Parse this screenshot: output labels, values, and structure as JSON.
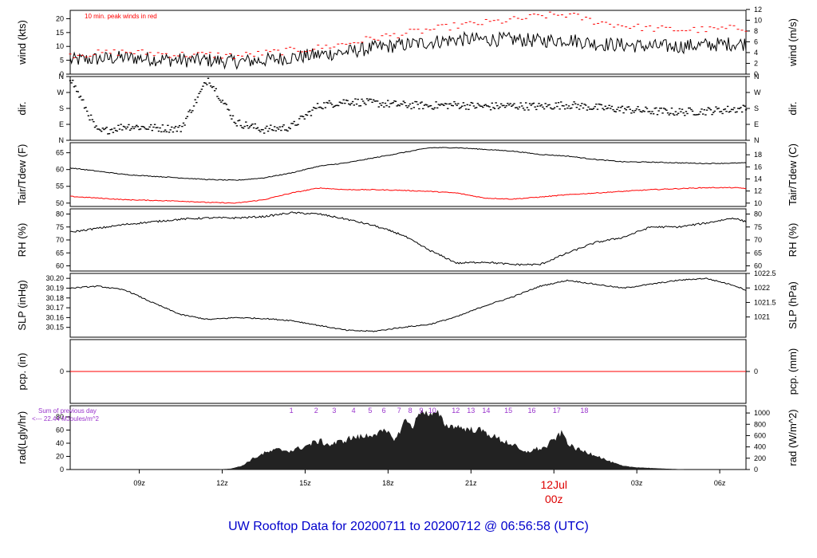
{
  "title": "UW Rooftop Data for 20200711  to  20200712 @ 06:56:58  (UTC)",
  "colors": {
    "primary": "#000000",
    "accent": "#ff0000",
    "title": "#0000cc",
    "rad_text": "#9933cc"
  },
  "chart_data": {
    "type": "line",
    "x_range_hours": [
      6.5,
      30.95
    ],
    "x_ticks": [
      {
        "hour": 9,
        "label": "09z"
      },
      {
        "hour": 12,
        "label": "12z"
      },
      {
        "hour": 15,
        "label": "15z"
      },
      {
        "hour": 18,
        "label": "18z"
      },
      {
        "hour": 21,
        "label": "21z"
      },
      {
        "hour": 24,
        "label": "12Jul",
        "label2": "00z"
      },
      {
        "hour": 27,
        "label": "03z"
      },
      {
        "hour": 30,
        "label": "06z"
      }
    ],
    "panels": [
      {
        "id": "wind",
        "ylabel": "wind (kts)",
        "ylabel_right": "wind (m/s)",
        "annotation": "10 min. peak winds in red",
        "ylim": [
          0,
          23
        ],
        "left_ticks": [
          {
            "v": 0,
            "l": "0"
          },
          {
            "v": 5,
            "l": "5"
          },
          {
            "v": 10,
            "l": "10"
          },
          {
            "v": 15,
            "l": "15"
          },
          {
            "v": 20,
            "l": "20"
          }
        ],
        "right_ticks": [
          {
            "v": 0,
            "l": "0"
          },
          {
            "v": 3.89,
            "l": "2"
          },
          {
            "v": 7.78,
            "l": "4"
          },
          {
            "v": 11.66,
            "l": "6"
          },
          {
            "v": 15.55,
            "l": "8"
          },
          {
            "v": 19.44,
            "l": "10"
          },
          {
            "v": 23.33,
            "l": "12"
          }
        ],
        "series": [
          {
            "kind": "line",
            "color": "#000000",
            "x": [
              6.5,
              7.5,
              8.5,
              9.5,
              10.5,
              11.5,
              12.5,
              13.5,
              14.5,
              15.5,
              16.5,
              17.5,
              18.5,
              19.5,
              20.5,
              21.5,
              22.5,
              23.5,
              24.5,
              25.5,
              26.5,
              27.5,
              28.5,
              29.5,
              30.5,
              30.95
            ],
            "y": [
              5,
              5.5,
              6,
              5.5,
              5,
              5,
              4.5,
              5,
              6,
              7,
              8,
              9.5,
              10.5,
              11.5,
              12.5,
              12.5,
              12.5,
              12,
              12.5,
              11,
              10.5,
              10,
              10,
              10.5,
              11,
              11
            ]
          },
          {
            "kind": "dash",
            "color": "#ff0000",
            "x": [
              6.5,
              7.5,
              8.5,
              9.5,
              10.5,
              11.5,
              12.5,
              13.5,
              14.5,
              15.5,
              16.5,
              17.5,
              18.5,
              19.5,
              20.5,
              21.5,
              22.5,
              23.5,
              24.5,
              25.5,
              26.5,
              27.5,
              28.5,
              29.5,
              30.5,
              30.95
            ],
            "y": [
              7,
              7.5,
              8,
              7.5,
              7,
              7,
              6.5,
              7.5,
              8.5,
              9.5,
              11,
              13,
              14.5,
              16,
              17.5,
              18.5,
              19.5,
              21,
              21.5,
              19,
              17.5,
              16.5,
              16,
              16,
              16.5,
              16.5
            ]
          }
        ]
      },
      {
        "id": "dir",
        "ylabel": "dir.",
        "ylabel_right": "dir.",
        "ylim": [
          0,
          360
        ],
        "left_ticks": [
          {
            "v": 0,
            "l": "N"
          },
          {
            "v": 90,
            "l": "E"
          },
          {
            "v": 180,
            "l": "S"
          },
          {
            "v": 270,
            "l": "W"
          },
          {
            "v": 360,
            "l": "N"
          }
        ],
        "right_ticks": [
          {
            "v": 0,
            "l": "N"
          },
          {
            "v": 90,
            "l": "E"
          },
          {
            "v": 180,
            "l": "S"
          },
          {
            "v": 270,
            "l": "W"
          },
          {
            "v": 360,
            "l": "N"
          }
        ],
        "series": [
          {
            "kind": "dir",
            "color": "#000000",
            "x": [
              6.5,
              7.5,
              8.5,
              9.5,
              10.5,
              11.5,
              12.5,
              13.5,
              14.5,
              15.5,
              16.5,
              17.5,
              18.5,
              19.5,
              20.5,
              21.5,
              22.5,
              23.5,
              24.5,
              25.5,
              26.5,
              27.5,
              28.5,
              29.5,
              30.5,
              30.95
            ],
            "y": [
              355,
              45,
              80,
              70,
              65,
              350,
              100,
              60,
              75,
              195,
              220,
              210,
              200,
              195,
              200,
              190,
              195,
              190,
              200,
              185,
              175,
              165,
              160,
              165,
              175,
              180
            ]
          }
        ]
      },
      {
        "id": "temp",
        "ylabel": "Tair/Tdew (F)",
        "ylabel_right": "Tair/Tdew (C)",
        "ylim": [
          49,
          68
        ],
        "left_ticks": [
          {
            "v": 50,
            "l": "50"
          },
          {
            "v": 55,
            "l": "55"
          },
          {
            "v": 60,
            "l": "60"
          },
          {
            "v": 65,
            "l": "65"
          }
        ],
        "right_ticks": [
          {
            "v": 50,
            "l": "10"
          },
          {
            "v": 53.6,
            "l": "12"
          },
          {
            "v": 57.2,
            "l": "14"
          },
          {
            "v": 60.8,
            "l": "16"
          },
          {
            "v": 64.4,
            "l": "18"
          }
        ],
        "series": [
          {
            "kind": "line",
            "color": "#000000",
            "name": "Tair",
            "x": [
              6.5,
              7.5,
              8.5,
              9.5,
              10.5,
              11.5,
              12.5,
              13.5,
              14.5,
              15.5,
              16.5,
              17.5,
              18.5,
              19.5,
              20.5,
              21.5,
              22.5,
              23.5,
              24.5,
              25.5,
              26.5,
              27.5,
              28.5,
              29.5,
              30.5,
              30.95
            ],
            "y": [
              60.5,
              59.5,
              58.5,
              58,
              57.5,
              57,
              56.8,
              57.5,
              59,
              61,
              62,
              63.5,
              65,
              66.5,
              66.5,
              66,
              65.5,
              64.5,
              64,
              63,
              62.3,
              62.2,
              62,
              61.8,
              61.9,
              62
            ]
          },
          {
            "kind": "line",
            "color": "#ff0000",
            "name": "Tdew",
            "x": [
              6.5,
              7.5,
              8.5,
              9.5,
              10.5,
              11.5,
              12.5,
              13.5,
              14.5,
              15.5,
              16.5,
              17.5,
              18.5,
              19.5,
              20.5,
              21.5,
              22.5,
              23.5,
              24.5,
              25.5,
              26.5,
              27.5,
              28.5,
              29.5,
              30.5,
              30.95
            ],
            "y": [
              52,
              51.5,
              51,
              50.8,
              50.6,
              50.2,
              50,
              51,
              53,
              54.5,
              54,
              54,
              53.8,
              53.5,
              53,
              51.5,
              51.2,
              51.8,
              52.5,
              53,
              53.5,
              54,
              54.3,
              54.6,
              54.6,
              54.4
            ]
          }
        ]
      },
      {
        "id": "rh",
        "ylabel": "RH (%)",
        "ylabel_right": "RH (%)",
        "ylim": [
          58,
          82
        ],
        "left_ticks": [
          {
            "v": 60,
            "l": "60"
          },
          {
            "v": 65,
            "l": "65"
          },
          {
            "v": 70,
            "l": "70"
          },
          {
            "v": 75,
            "l": "75"
          },
          {
            "v": 80,
            "l": "80"
          }
        ],
        "right_ticks": [
          {
            "v": 60,
            "l": "60"
          },
          {
            "v": 65,
            "l": "65"
          },
          {
            "v": 70,
            "l": "70"
          },
          {
            "v": 75,
            "l": "75"
          },
          {
            "v": 80,
            "l": "80"
          }
        ],
        "series": [
          {
            "kind": "line",
            "color": "#000000",
            "x": [
              6.5,
              7.5,
              8.5,
              9.5,
              10.5,
              11.5,
              12.5,
              13.5,
              14.5,
              15.5,
              16.5,
              17.5,
              18.5,
              19.5,
              20.5,
              21.5,
              22.5,
              23.5,
              24.5,
              25.5,
              26.5,
              27.5,
              28.5,
              29.5,
              30.5,
              30.95
            ],
            "y": [
              73,
              74.5,
              76,
              77,
              78,
              78.5,
              78.5,
              79,
              80.5,
              80,
              78,
              75.5,
              72,
              66,
              61,
              61.5,
              60.5,
              60.5,
              65,
              69,
              71,
              75,
              75,
              76.5,
              78.5,
              77
            ]
          }
        ]
      },
      {
        "id": "slp",
        "ylabel": "SLP (inHg)",
        "ylabel_right": "SLP (hPa)",
        "ylim": [
          30.14,
          30.205
        ],
        "left_ticks": [
          {
            "v": 30.15,
            "l": "30.15"
          },
          {
            "v": 30.16,
            "l": "30.16"
          },
          {
            "v": 30.17,
            "l": "30.17"
          },
          {
            "v": 30.18,
            "l": "30.18"
          },
          {
            "v": 30.19,
            "l": "30.19"
          },
          {
            "v": 30.2,
            "l": "30.20"
          }
        ],
        "right_ticks": [
          {
            "v": 30.1606,
            "l": "1021"
          },
          {
            "v": 30.1754,
            "l": "1021.5"
          },
          {
            "v": 30.1902,
            "l": "1022"
          },
          {
            "v": 30.205,
            "l": "1022.5"
          }
        ],
        "series": [
          {
            "kind": "line",
            "color": "#000000",
            "x": [
              6.5,
              7.5,
              8.5,
              9.5,
              10.5,
              11.5,
              12.5,
              13.5,
              14.5,
              15.5,
              16.5,
              17.5,
              18.5,
              19.5,
              20.5,
              21.5,
              22.5,
              23.5,
              24.5,
              25.5,
              26.5,
              27.5,
              28.5,
              29.5,
              30.5,
              30.95
            ],
            "y": [
              30.19,
              30.192,
              30.188,
              30.175,
              30.163,
              30.158,
              30.16,
              30.159,
              30.157,
              30.152,
              30.147,
              30.146,
              30.15,
              30.153,
              30.161,
              30.172,
              30.181,
              30.192,
              30.198,
              30.194,
              30.19,
              30.194,
              30.198,
              30.2,
              30.193,
              30.188
            ]
          }
        ]
      },
      {
        "id": "pcp",
        "ylabel": "pcp. (in)",
        "ylabel_right": "pcp. (mm)",
        "ylim": [
          -1,
          1
        ],
        "left_ticks": [
          {
            "v": 0,
            "l": "0"
          }
        ],
        "right_ticks": [
          {
            "v": 0,
            "l": "0"
          }
        ],
        "series": [
          {
            "kind": "line",
            "color": "#ff0000",
            "x": [
              6.5,
              30.95
            ],
            "y": [
              0,
              0
            ]
          }
        ]
      },
      {
        "id": "rad",
        "ylabel": "rad(Lgly/hr)",
        "ylabel_right": "rad (W/m^2)",
        "ylim": [
          0,
          97
        ],
        "left_ticks": [
          {
            "v": 0,
            "l": "0"
          },
          {
            "v": 20,
            "l": "20"
          },
          {
            "v": 40,
            "l": "40"
          },
          {
            "v": 60,
            "l": "60"
          },
          {
            "v": 80,
            "l": "80"
          }
        ],
        "right_ticks": [
          {
            "v": 0,
            "l": "0"
          },
          {
            "v": 17.2,
            "l": "200"
          },
          {
            "v": 34.4,
            "l": "400"
          },
          {
            "v": 51.6,
            "l": "600"
          },
          {
            "v": 68.8,
            "l": "800"
          },
          {
            "v": 86,
            "l": "1000"
          }
        ],
        "sum_text": "Sum of previous day",
        "sum_value_text": "<--- 22.44 MJoules/m^2",
        "hour_labels": [
          {
            "hour": 14.5,
            "l": "1"
          },
          {
            "hour": 15.4,
            "l": "2"
          },
          {
            "hour": 16.05,
            "l": "3"
          },
          {
            "hour": 16.75,
            "l": "4"
          },
          {
            "hour": 17.35,
            "l": "5"
          },
          {
            "hour": 17.85,
            "l": "6"
          },
          {
            "hour": 18.4,
            "l": "7"
          },
          {
            "hour": 18.8,
            "l": "8"
          },
          {
            "hour": 19.2,
            "l": "9"
          },
          {
            "hour": 19.6,
            "l": "10"
          },
          {
            "hour": 20.45,
            "l": "12"
          },
          {
            "hour": 21.0,
            "l": "13"
          },
          {
            "hour": 21.55,
            "l": "14"
          },
          {
            "hour": 22.35,
            "l": "15"
          },
          {
            "hour": 23.2,
            "l": "16"
          },
          {
            "hour": 24.1,
            "l": "17"
          },
          {
            "hour": 25.1,
            "l": "18"
          }
        ],
        "series": [
          {
            "kind": "area",
            "color": "#222222",
            "x": [
              11.9,
              12.3,
              12.7,
              13.1,
              13.5,
              14.0,
              14.5,
              15.0,
              15.5,
              15.9,
              16.3,
              16.7,
              17.1,
              17.5,
              17.9,
              18.3,
              18.6,
              18.9,
              19.2,
              19.5,
              19.8,
              20.1,
              20.5,
              20.9,
              21.3,
              21.7,
              22.1,
              22.5,
              22.9,
              23.3,
              23.7,
              24.0,
              24.3,
              24.6,
              25.0,
              25.5,
              26.0,
              26.5,
              27.0,
              27.5,
              28.0,
              28.7
            ],
            "y": [
              0,
              1,
              5,
              16,
              24,
              30,
              28,
              35,
              43,
              37,
              42,
              48,
              49,
              54,
              57,
              45,
              75,
              65,
              90,
              82,
              85,
              66,
              65,
              60,
              60,
              52,
              44,
              38,
              25,
              30,
              33,
              45,
              55,
              35,
              28,
              22,
              12,
              5,
              3,
              2,
              1,
              0
            ]
          }
        ]
      }
    ]
  }
}
